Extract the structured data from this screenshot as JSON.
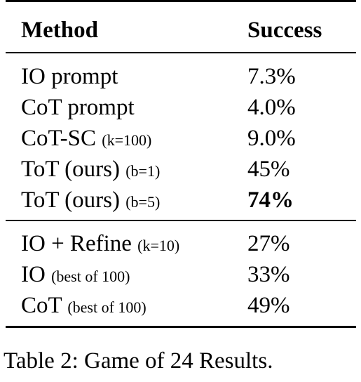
{
  "table": {
    "headers": {
      "method": "Method",
      "success": "Success"
    },
    "groups": [
      [
        {
          "name": "IO prompt",
          "param": "",
          "success": "7.3%",
          "bold": false
        },
        {
          "name": "CoT prompt",
          "param": "",
          "success": "4.0%",
          "bold": false
        },
        {
          "name": "CoT-SC",
          "param": "(k=100)",
          "success": "9.0%",
          "bold": false
        },
        {
          "name": "ToT (ours)",
          "param": "(b=1)",
          "success": "45%",
          "bold": false
        },
        {
          "name": "ToT (ours)",
          "param": "(b=5)",
          "success": "74%",
          "bold": true
        }
      ],
      [
        {
          "name": "IO + Refine",
          "param": "(k=10)",
          "success": "27%",
          "bold": false
        },
        {
          "name": "IO",
          "param": "(best of 100)",
          "success": "33%",
          "bold": false
        },
        {
          "name": "CoT",
          "param": "(best of 100)",
          "success": "49%",
          "bold": false
        }
      ]
    ]
  },
  "caption": "Table 2: Game of 24 Results."
}
